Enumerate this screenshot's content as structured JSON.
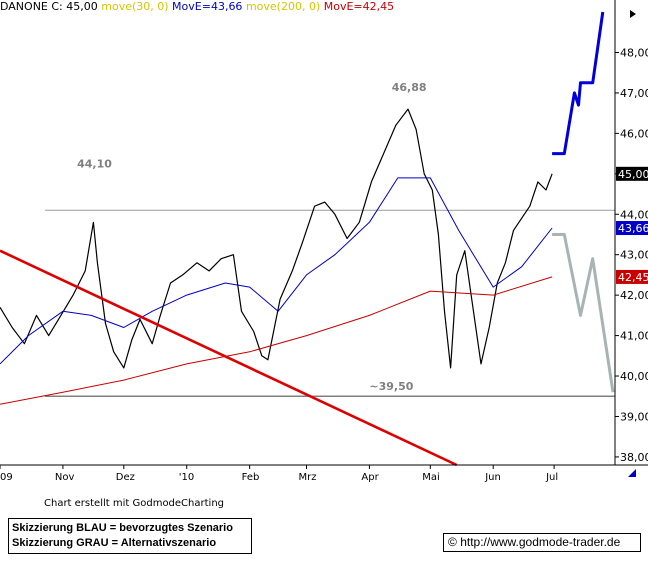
{
  "legend": {
    "ticker": "DANONE C: 45,00",
    "ma30": "move(30, 0)",
    "ema": "MovE=43,66",
    "ma200": "move(200, 0)",
    "ema200": "MovE=42,45"
  },
  "annotations": {
    "high": "46,88",
    "resistance": "44,10",
    "support": "~39,50"
  },
  "credit": "Chart erstellt mit GodmodeCharting",
  "notes": {
    "blue": "Skizzierung BLAU = bevorzugtes Szenario",
    "grey": "Skizzierung GRAU = Alternativszenario"
  },
  "website": "http://www.godmode-trader.de",
  "colors": {
    "price": "#000000",
    "ema_short": "#0000c8",
    "ema_long": "#c80000",
    "trendline": "#dd0000",
    "blue_scenario": "#0000dd",
    "grey_scenario": "#a8b4b4",
    "support_line": "#808080"
  },
  "chart_data": {
    "type": "line",
    "y_axis": {
      "range": [
        37.8,
        49.1
      ],
      "ticks": [
        "38,00",
        "39,00",
        "40,00",
        "41,00",
        "42,00",
        "43,00",
        "44,00",
        "45,00",
        "46,00",
        "47,00",
        "48,00"
      ]
    },
    "x_axis": {
      "range": [
        "2009-10-01",
        "2010-07-31"
      ],
      "labels": [
        {
          "date": "2009-10-01",
          "label": "09"
        },
        {
          "date": "2009-11-01",
          "label": "Nov"
        },
        {
          "date": "2009-12-01",
          "label": "Dez"
        },
        {
          "date": "2010-01-01",
          "label": "'10"
        },
        {
          "date": "2010-02-01",
          "label": "Feb"
        },
        {
          "date": "2010-03-01",
          "label": "Mrz"
        },
        {
          "date": "2010-04-01",
          "label": "Apr"
        },
        {
          "date": "2010-05-01",
          "label": "Mai"
        },
        {
          "date": "2010-06-01",
          "label": "Jun"
        },
        {
          "date": "2010-07-01",
          "label": "Jul"
        }
      ]
    },
    "price_labels": [
      {
        "label": "45,00",
        "value": 45.0
      },
      {
        "label": "43,66",
        "value": 43.66
      },
      {
        "label": "42,45",
        "value": 42.45
      }
    ],
    "horizontal_lines": [
      {
        "name": "resistance",
        "value": 44.1
      },
      {
        "name": "support",
        "value": 39.5
      }
    ],
    "series": [
      {
        "name": "DANONE C",
        "values": [
          [
            "2009-10-01",
            41.7
          ],
          [
            "2009-10-07",
            41.2
          ],
          [
            "2009-10-13",
            40.8
          ],
          [
            "2009-10-19",
            41.5
          ],
          [
            "2009-10-25",
            41.0
          ],
          [
            "2009-10-31",
            41.5
          ],
          [
            "2009-11-06",
            42.0
          ],
          [
            "2009-11-12",
            42.6
          ],
          [
            "2009-11-16",
            43.8
          ],
          [
            "2009-11-18",
            42.8
          ],
          [
            "2009-11-22",
            41.3
          ],
          [
            "2009-11-26",
            40.6
          ],
          [
            "2009-12-01",
            40.2
          ],
          [
            "2009-12-05",
            40.9
          ],
          [
            "2009-12-09",
            41.4
          ],
          [
            "2009-12-15",
            40.8
          ],
          [
            "2009-12-19",
            41.5
          ],
          [
            "2009-12-24",
            42.3
          ],
          [
            "2009-12-30",
            42.5
          ],
          [
            "2010-01-06",
            42.8
          ],
          [
            "2010-01-12",
            42.6
          ],
          [
            "2010-01-18",
            42.9
          ],
          [
            "2010-01-24",
            43.0
          ],
          [
            "2010-01-28",
            41.6
          ],
          [
            "2010-02-03",
            41.1
          ],
          [
            "2010-02-07",
            40.5
          ],
          [
            "2010-02-10",
            40.4
          ],
          [
            "2010-02-16",
            41.9
          ],
          [
            "2010-02-22",
            42.6
          ],
          [
            "2010-02-27",
            43.3
          ],
          [
            "2010-03-05",
            44.2
          ],
          [
            "2010-03-10",
            44.3
          ],
          [
            "2010-03-15",
            44.0
          ],
          [
            "2010-03-21",
            43.4
          ],
          [
            "2010-03-27",
            43.8
          ],
          [
            "2010-04-02",
            44.8
          ],
          [
            "2010-04-08",
            45.5
          ],
          [
            "2010-04-14",
            46.2
          ],
          [
            "2010-04-20",
            46.6
          ],
          [
            "2010-04-24",
            46.1
          ],
          [
            "2010-04-28",
            45.0
          ],
          [
            "2010-05-02",
            44.6
          ],
          [
            "2010-05-05",
            43.5
          ],
          [
            "2010-05-08",
            41.6
          ],
          [
            "2010-05-11",
            40.2
          ],
          [
            "2010-05-14",
            42.5
          ],
          [
            "2010-05-18",
            43.1
          ],
          [
            "2010-05-22",
            41.7
          ],
          [
            "2010-05-26",
            40.3
          ],
          [
            "2010-05-30",
            41.2
          ],
          [
            "2010-06-03",
            42.3
          ],
          [
            "2010-06-07",
            42.8
          ],
          [
            "2010-06-11",
            43.6
          ],
          [
            "2010-06-15",
            43.9
          ],
          [
            "2010-06-19",
            44.2
          ],
          [
            "2010-06-23",
            44.8
          ],
          [
            "2010-06-27",
            44.6
          ],
          [
            "2010-06-30",
            45.0
          ]
        ]
      },
      {
        "name": "EMA short",
        "values": [
          [
            "2009-10-01",
            40.3
          ],
          [
            "2009-10-15",
            41.0
          ],
          [
            "2009-11-01",
            41.6
          ],
          [
            "2009-11-15",
            41.5
          ],
          [
            "2009-12-01",
            41.2
          ],
          [
            "2009-12-15",
            41.6
          ],
          [
            "2010-01-01",
            42.0
          ],
          [
            "2010-01-20",
            42.3
          ],
          [
            "2010-02-01",
            42.2
          ],
          [
            "2010-02-15",
            41.6
          ],
          [
            "2010-03-01",
            42.5
          ],
          [
            "2010-03-15",
            43.0
          ],
          [
            "2010-04-01",
            43.8
          ],
          [
            "2010-04-15",
            44.9
          ],
          [
            "2010-05-01",
            44.9
          ],
          [
            "2010-05-15",
            43.6
          ],
          [
            "2010-06-01",
            42.2
          ],
          [
            "2010-06-15",
            42.7
          ],
          [
            "2010-06-30",
            43.66
          ]
        ]
      },
      {
        "name": "EMA long",
        "values": [
          [
            "2009-10-01",
            39.3
          ],
          [
            "2009-11-01",
            39.6
          ],
          [
            "2009-12-01",
            39.9
          ],
          [
            "2010-01-01",
            40.3
          ],
          [
            "2010-02-01",
            40.6
          ],
          [
            "2010-03-01",
            41.0
          ],
          [
            "2010-04-01",
            41.5
          ],
          [
            "2010-05-01",
            42.1
          ],
          [
            "2010-06-01",
            42.0
          ],
          [
            "2010-06-30",
            42.45
          ]
        ]
      },
      {
        "name": "trendline",
        "values": [
          [
            "2009-10-01",
            43.1
          ],
          [
            "2010-05-14",
            37.8
          ]
        ]
      },
      {
        "name": "blue scenario",
        "values": [
          [
            "2010-06-30",
            45.5
          ],
          [
            "2010-07-06",
            45.5
          ],
          [
            "2010-07-11",
            47.0
          ],
          [
            "2010-07-13",
            46.7
          ],
          [
            "2010-07-14",
            47.25
          ],
          [
            "2010-07-20",
            47.25
          ],
          [
            "2010-07-25",
            49.0
          ]
        ]
      },
      {
        "name": "grey scenario",
        "values": [
          [
            "2010-06-30",
            43.5
          ],
          [
            "2010-07-06",
            43.5
          ],
          [
            "2010-07-14",
            41.5
          ],
          [
            "2010-07-20",
            42.9
          ],
          [
            "2010-07-30",
            39.6
          ]
        ]
      }
    ]
  }
}
